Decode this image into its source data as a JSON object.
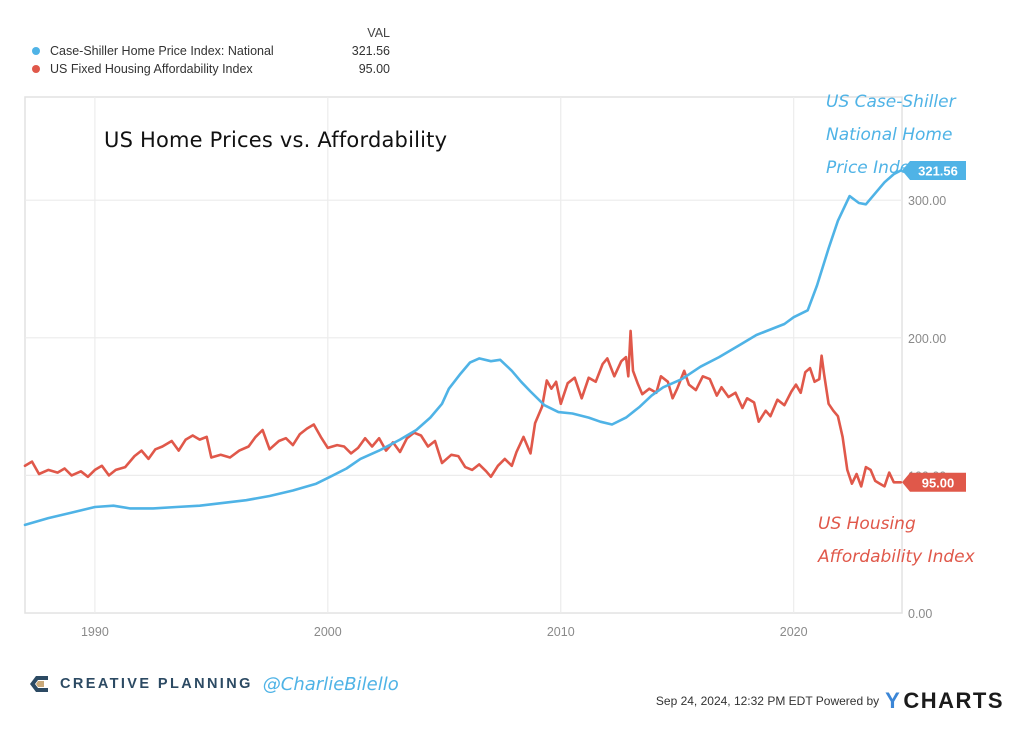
{
  "legend": {
    "header": "VAL",
    "items": [
      {
        "label": "Case-Shiller Home Price Index: National",
        "value": "321.56",
        "color": "#4fb3e6"
      },
      {
        "label": "US Fixed Housing Affordability Index",
        "value": "95.00",
        "color": "#e0584a"
      }
    ]
  },
  "annotations": {
    "blue_lines": [
      "US Case-Shiller",
      "National Home",
      "Price Index"
    ],
    "red_lines": [
      "US Housing",
      "Affordability Index"
    ]
  },
  "footer": {
    "brand": "CREATIVE PLANNING",
    "handle": "@CharlieBilello",
    "timestamp": "Sep 24, 2024, 12:32 PM EDT Powered by",
    "ycharts_y": "Y",
    "ycharts_rest": "CHARTS"
  },
  "chart_data": {
    "type": "line",
    "title": "US Home Prices vs. Affordability",
    "xlabel": "",
    "ylabel": "",
    "xlim": [
      1987.0,
      2024.65
    ],
    "ylim": [
      0,
      375
    ],
    "x_ticks": [
      1990,
      2000,
      2010,
      2020
    ],
    "y_ticks": [
      0,
      100,
      200,
      300
    ],
    "y_tick_labels": [
      "0.00",
      "100.00",
      "200.00",
      "300.00"
    ],
    "grid": true,
    "legend": "top-left",
    "series": [
      {
        "name": "Case-Shiller Home Price Index: National",
        "color": "#4fb3e6",
        "last_value_label": "321.56",
        "points": [
          [
            1987.0,
            64
          ],
          [
            1988.0,
            69
          ],
          [
            1989.0,
            73
          ],
          [
            1990.0,
            77
          ],
          [
            1990.8,
            78
          ],
          [
            1991.5,
            76
          ],
          [
            1992.5,
            76
          ],
          [
            1993.5,
            77
          ],
          [
            1994.5,
            78
          ],
          [
            1995.5,
            80
          ],
          [
            1996.5,
            82
          ],
          [
            1997.5,
            85
          ],
          [
            1998.5,
            89
          ],
          [
            1999.5,
            94
          ],
          [
            2000.1,
            99
          ],
          [
            2000.8,
            105
          ],
          [
            2001.4,
            112
          ],
          [
            2002.2,
            118
          ],
          [
            2003.1,
            126
          ],
          [
            2003.8,
            133
          ],
          [
            2004.4,
            142
          ],
          [
            2004.9,
            152
          ],
          [
            2005.2,
            163
          ],
          [
            2005.7,
            174
          ],
          [
            2006.1,
            182
          ],
          [
            2006.5,
            185
          ],
          [
            2007.0,
            183
          ],
          [
            2007.4,
            184
          ],
          [
            2007.9,
            176
          ],
          [
            2008.3,
            168
          ],
          [
            2008.7,
            161
          ],
          [
            2009.3,
            151
          ],
          [
            2009.9,
            146
          ],
          [
            2010.5,
            145
          ],
          [
            2011.2,
            142
          ],
          [
            2011.7,
            139
          ],
          [
            2012.2,
            137
          ],
          [
            2012.8,
            142
          ],
          [
            2013.4,
            150
          ],
          [
            2013.9,
            158
          ],
          [
            2014.4,
            164
          ],
          [
            2015.2,
            170
          ],
          [
            2016.0,
            179
          ],
          [
            2016.8,
            186
          ],
          [
            2017.7,
            195
          ],
          [
            2018.4,
            202
          ],
          [
            2019.0,
            206
          ],
          [
            2019.6,
            210
          ],
          [
            2020.0,
            215
          ],
          [
            2020.6,
            220
          ],
          [
            2021.0,
            238
          ],
          [
            2021.5,
            265
          ],
          [
            2021.9,
            285
          ],
          [
            2022.4,
            303
          ],
          [
            2022.8,
            298
          ],
          [
            2023.1,
            297
          ],
          [
            2023.5,
            305
          ],
          [
            2023.9,
            313
          ],
          [
            2024.3,
            319
          ],
          [
            2024.6,
            321.56
          ]
        ]
      },
      {
        "name": "US Fixed Housing Affordability Index",
        "color": "#e0584a",
        "last_value_label": "95.00",
        "points": [
          [
            1987.0,
            107
          ],
          [
            1987.3,
            110
          ],
          [
            1987.6,
            101
          ],
          [
            1988.0,
            104
          ],
          [
            1988.4,
            102
          ],
          [
            1988.7,
            105
          ],
          [
            1989.0,
            100
          ],
          [
            1989.4,
            103
          ],
          [
            1989.7,
            99
          ],
          [
            1990.0,
            104
          ],
          [
            1990.3,
            107
          ],
          [
            1990.6,
            100
          ],
          [
            1990.9,
            104
          ],
          [
            1991.3,
            106
          ],
          [
            1991.7,
            114
          ],
          [
            1992.0,
            118
          ],
          [
            1992.3,
            112
          ],
          [
            1992.6,
            119
          ],
          [
            1992.9,
            121
          ],
          [
            1993.3,
            125
          ],
          [
            1993.6,
            118
          ],
          [
            1993.9,
            126
          ],
          [
            1994.2,
            129
          ],
          [
            1994.5,
            126
          ],
          [
            1994.8,
            128
          ],
          [
            1995.0,
            113
          ],
          [
            1995.4,
            115
          ],
          [
            1995.8,
            113
          ],
          [
            1996.2,
            118
          ],
          [
            1996.6,
            121
          ],
          [
            1996.9,
            128
          ],
          [
            1997.2,
            133
          ],
          [
            1997.5,
            119
          ],
          [
            1997.9,
            125
          ],
          [
            1998.2,
            127
          ],
          [
            1998.5,
            122
          ],
          [
            1998.8,
            130
          ],
          [
            1999.1,
            134
          ],
          [
            1999.4,
            137
          ],
          [
            1999.7,
            128
          ],
          [
            2000.0,
            120
          ],
          [
            2000.4,
            122
          ],
          [
            2000.7,
            121
          ],
          [
            2001.0,
            116
          ],
          [
            2001.3,
            120
          ],
          [
            2001.6,
            127
          ],
          [
            2001.9,
            121
          ],
          [
            2002.2,
            127
          ],
          [
            2002.5,
            118
          ],
          [
            2002.8,
            124
          ],
          [
            2003.1,
            117
          ],
          [
            2003.4,
            127
          ],
          [
            2003.7,
            131
          ],
          [
            2004.0,
            129
          ],
          [
            2004.3,
            121
          ],
          [
            2004.6,
            125
          ],
          [
            2004.9,
            109
          ],
          [
            2005.3,
            115
          ],
          [
            2005.6,
            114
          ],
          [
            2005.9,
            106
          ],
          [
            2006.2,
            104
          ],
          [
            2006.5,
            108
          ],
          [
            2006.8,
            103
          ],
          [
            2007.0,
            99
          ],
          [
            2007.3,
            107
          ],
          [
            2007.6,
            112
          ],
          [
            2007.9,
            107
          ],
          [
            2008.1,
            117
          ],
          [
            2008.4,
            128
          ],
          [
            2008.7,
            116
          ],
          [
            2008.9,
            138
          ],
          [
            2009.2,
            150
          ],
          [
            2009.4,
            169
          ],
          [
            2009.6,
            163
          ],
          [
            2009.8,
            168
          ],
          [
            2010.0,
            152
          ],
          [
            2010.3,
            167
          ],
          [
            2010.6,
            171
          ],
          [
            2010.9,
            156
          ],
          [
            2011.2,
            171
          ],
          [
            2011.5,
            168
          ],
          [
            2011.8,
            181
          ],
          [
            2012.0,
            185
          ],
          [
            2012.3,
            172
          ],
          [
            2012.6,
            183
          ],
          [
            2012.8,
            186
          ],
          [
            2012.9,
            172
          ],
          [
            2013.0,
            205
          ],
          [
            2013.1,
            176
          ],
          [
            2013.3,
            167
          ],
          [
            2013.5,
            159
          ],
          [
            2013.8,
            163
          ],
          [
            2014.1,
            160
          ],
          [
            2014.3,
            172
          ],
          [
            2014.6,
            168
          ],
          [
            2014.8,
            156
          ],
          [
            2015.0,
            163
          ],
          [
            2015.3,
            176
          ],
          [
            2015.5,
            166
          ],
          [
            2015.8,
            162
          ],
          [
            2016.1,
            172
          ],
          [
            2016.4,
            170
          ],
          [
            2016.7,
            158
          ],
          [
            2016.9,
            164
          ],
          [
            2017.2,
            157
          ],
          [
            2017.5,
            160
          ],
          [
            2017.8,
            149
          ],
          [
            2018.0,
            156
          ],
          [
            2018.3,
            153
          ],
          [
            2018.5,
            139
          ],
          [
            2018.8,
            147
          ],
          [
            2019.0,
            143
          ],
          [
            2019.3,
            155
          ],
          [
            2019.6,
            151
          ],
          [
            2019.9,
            161
          ],
          [
            2020.1,
            166
          ],
          [
            2020.3,
            160
          ],
          [
            2020.5,
            175
          ],
          [
            2020.7,
            178
          ],
          [
            2020.9,
            168
          ],
          [
            2021.1,
            170
          ],
          [
            2021.2,
            187
          ],
          [
            2021.3,
            174
          ],
          [
            2021.5,
            152
          ],
          [
            2021.7,
            147
          ],
          [
            2021.9,
            143
          ],
          [
            2022.1,
            128
          ],
          [
            2022.3,
            104
          ],
          [
            2022.5,
            94
          ],
          [
            2022.7,
            101
          ],
          [
            2022.9,
            92
          ],
          [
            2023.1,
            106
          ],
          [
            2023.3,
            104
          ],
          [
            2023.5,
            96
          ],
          [
            2023.7,
            94
          ],
          [
            2023.9,
            92
          ],
          [
            2024.1,
            102
          ],
          [
            2024.3,
            95
          ],
          [
            2024.6,
            95
          ]
        ]
      }
    ]
  }
}
